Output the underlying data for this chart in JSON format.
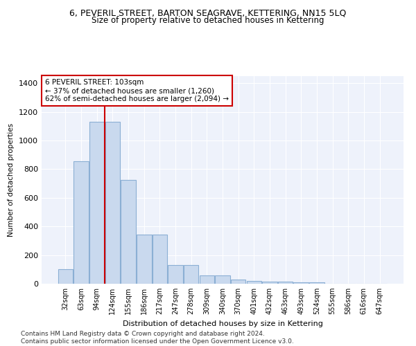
{
  "title": "6, PEVERIL STREET, BARTON SEAGRAVE, KETTERING, NN15 5LQ",
  "subtitle": "Size of property relative to detached houses in Kettering",
  "xlabel": "Distribution of detached houses by size in Kettering",
  "ylabel": "Number of detached properties",
  "categories": [
    "32sqm",
    "63sqm",
    "94sqm",
    "124sqm",
    "155sqm",
    "186sqm",
    "217sqm",
    "247sqm",
    "278sqm",
    "309sqm",
    "340sqm",
    "370sqm",
    "401sqm",
    "432sqm",
    "463sqm",
    "493sqm",
    "524sqm",
    "555sqm",
    "586sqm",
    "616sqm",
    "647sqm"
  ],
  "values": [
    100,
    855,
    1130,
    1130,
    725,
    345,
    345,
    130,
    130,
    60,
    60,
    27,
    20,
    15,
    15,
    10,
    10,
    0,
    0,
    0,
    0
  ],
  "bar_color": "#c9d9ee",
  "bar_edge_color": "#8bafd4",
  "vline_x": 2.5,
  "vline_color": "#cc0000",
  "annotation_text": "6 PEVERIL STREET: 103sqm\n← 37% of detached houses are smaller (1,260)\n62% of semi-detached houses are larger (2,094) →",
  "annotation_box_color": "#ffffff",
  "annotation_box_edge": "#cc0000",
  "ylim": [
    0,
    1450
  ],
  "yticks": [
    0,
    200,
    400,
    600,
    800,
    1000,
    1200,
    1400
  ],
  "background_color": "#eef2fb",
  "footer": "Contains HM Land Registry data © Crown copyright and database right 2024.\nContains public sector information licensed under the Open Government Licence v3.0.",
  "title_fontsize": 9,
  "subtitle_fontsize": 8.5,
  "footer_fontsize": 6.5
}
